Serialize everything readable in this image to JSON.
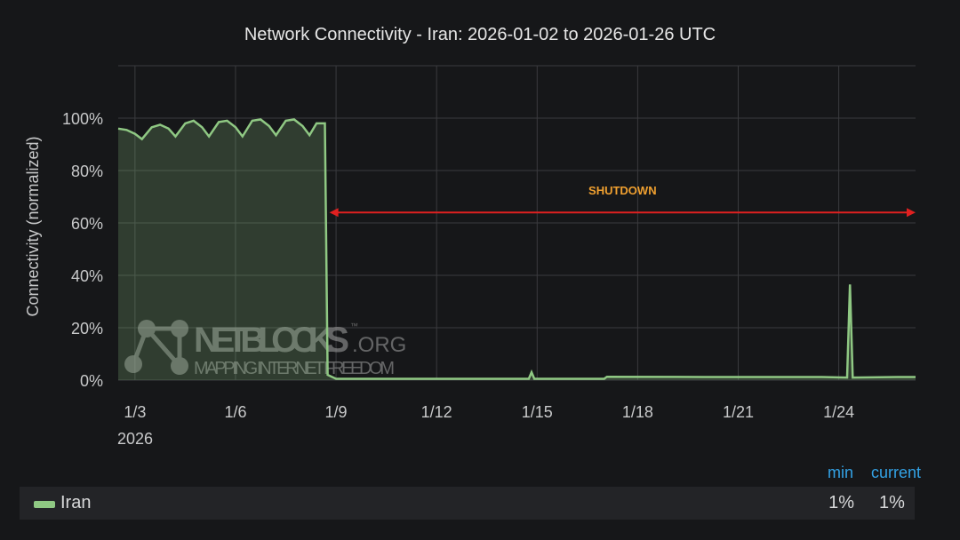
{
  "chart_data": {
    "type": "area",
    "title": "Network Connectivity - Iran: 2026-01-02 to 2026-01-26 UTC",
    "ylabel": "Connectivity (normalized)",
    "xlabel": "",
    "ylim": [
      0,
      120
    ],
    "yticks": [
      "0%",
      "20%",
      "40%",
      "60%",
      "80%",
      "100%"
    ],
    "ytick_values": [
      0,
      20,
      40,
      60,
      80,
      100
    ],
    "xticks": [
      "1/3",
      "1/6",
      "1/9",
      "1/12",
      "1/15",
      "1/18",
      "1/21",
      "1/24"
    ],
    "xtick_dates": [
      "2026-01-03",
      "2026-01-06",
      "2026-01-09",
      "2026-01-12",
      "2026-01-15",
      "2026-01-18",
      "2026-01-21",
      "2026-01-24"
    ],
    "xtick_year": "2026",
    "xlim": [
      "2026-01-02T12:00",
      "2026-01-26T07:00"
    ],
    "grid": true,
    "series": [
      {
        "name": "Iran",
        "color": "#8fc883",
        "points": [
          [
            "2026-01-02T12:00",
            96
          ],
          [
            "2026-01-02T18:00",
            95.5
          ],
          [
            "2026-01-03T00:00",
            94
          ],
          [
            "2026-01-03T05:00",
            92
          ],
          [
            "2026-01-03T12:00",
            96.5
          ],
          [
            "2026-01-03T18:00",
            97.5
          ],
          [
            "2026-01-04T00:00",
            96
          ],
          [
            "2026-01-04T05:00",
            93
          ],
          [
            "2026-01-04T12:00",
            98
          ],
          [
            "2026-01-04T18:00",
            99
          ],
          [
            "2026-01-05T00:00",
            96.5
          ],
          [
            "2026-01-05T05:00",
            93
          ],
          [
            "2026-01-05T12:00",
            98.5
          ],
          [
            "2026-01-05T18:00",
            99
          ],
          [
            "2026-01-06T00:00",
            96.5
          ],
          [
            "2026-01-06T05:00",
            93
          ],
          [
            "2026-01-06T12:00",
            99
          ],
          [
            "2026-01-06T18:00",
            99.5
          ],
          [
            "2026-01-07T00:00",
            97
          ],
          [
            "2026-01-07T05:00",
            93.5
          ],
          [
            "2026-01-07T12:00",
            99
          ],
          [
            "2026-01-07T18:00",
            99.5
          ],
          [
            "2026-01-08T00:00",
            97
          ],
          [
            "2026-01-08T05:00",
            93.5
          ],
          [
            "2026-01-08T10:00",
            98
          ],
          [
            "2026-01-08T16:00",
            98
          ],
          [
            "2026-01-08T18:00",
            2
          ],
          [
            "2026-01-09T00:00",
            0.5
          ],
          [
            "2026-01-14T18:00",
            0.5
          ],
          [
            "2026-01-14T20:00",
            3
          ],
          [
            "2026-01-14T22:00",
            0.5
          ],
          [
            "2026-01-17T00:00",
            0.5
          ],
          [
            "2026-01-17T02:00",
            1.3
          ],
          [
            "2026-01-20T00:00",
            1.2
          ],
          [
            "2026-01-23T12:00",
            1.2
          ],
          [
            "2026-01-24T06:00",
            1
          ],
          [
            "2026-01-24T08:00",
            36.5
          ],
          [
            "2026-01-24T10:00",
            1
          ],
          [
            "2026-01-25T18:00",
            1.2
          ],
          [
            "2026-01-26T07:00",
            1.2
          ]
        ]
      }
    ],
    "annotations": [
      {
        "text": "SHUTDOWN",
        "color": "#f0a030",
        "arrow_color": "#e02020",
        "from": "2026-01-08T18:00",
        "to": "2026-01-26T07:00",
        "y": 64
      }
    ]
  },
  "legend": {
    "headers": {
      "min": "min",
      "current": "current"
    },
    "items": [
      {
        "name": "Iran",
        "min": "1%",
        "current": "1%"
      }
    ]
  },
  "watermark": {
    "brand": "NETBLOCKS",
    "suffix": ".ORG",
    "tm": "™",
    "tagline": "MAPPING INTERNET FREEDOM"
  }
}
